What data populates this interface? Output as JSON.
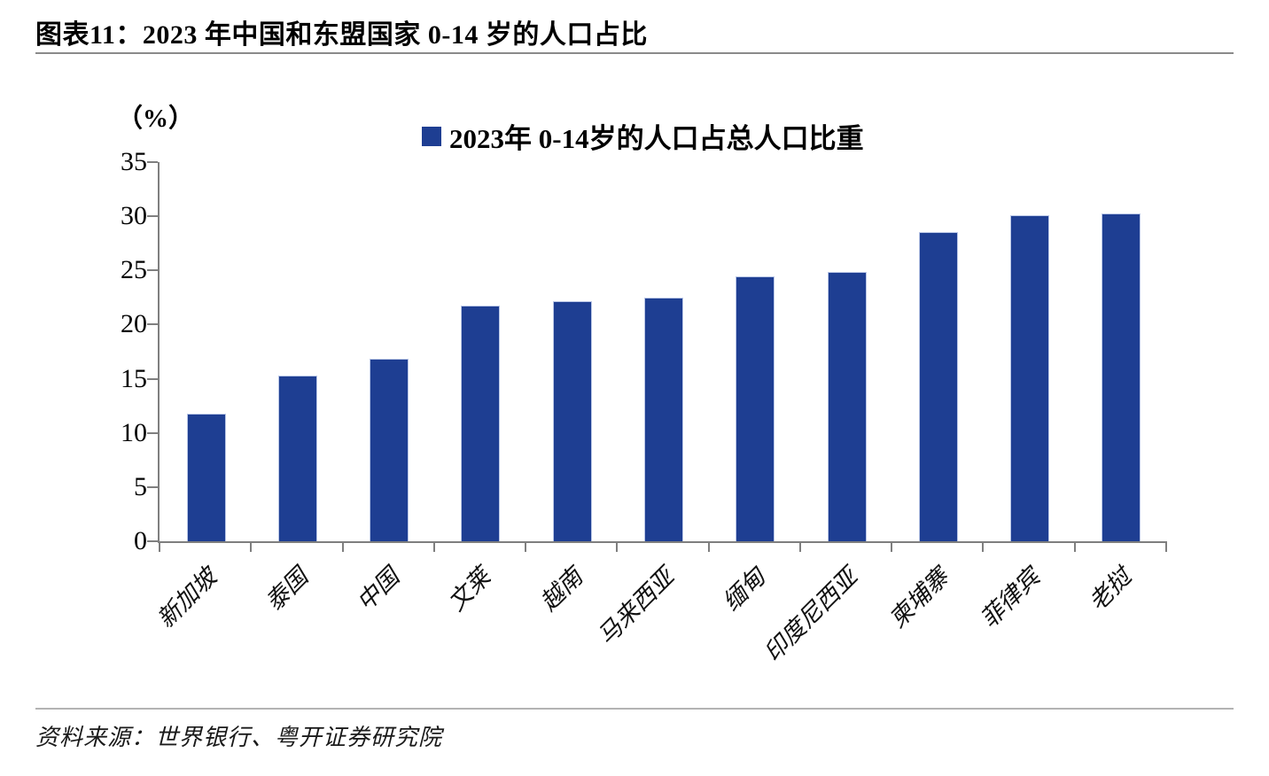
{
  "title": "图表11：2023 年中国和东盟国家 0-14 岁的人口占比",
  "footer": {
    "source_label": "资料来源：世界银行、粤开证券研究院"
  },
  "colors": {
    "bar_fill": "#1e3e92",
    "bar_edge": "#b9c6e6",
    "axis_line": "#7f7f7f",
    "title_rule": "#8a8a8a",
    "footer_rule": "#b3b3b3",
    "text": "#000000"
  },
  "chart_data": {
    "type": "bar",
    "title": "图表11：2023 年中国和东盟国家 0-14 岁的人口占比",
    "legend": "2023年 0-14岁的人口占总人口比重",
    "legend_position": "top-center",
    "unit_label": "（%）",
    "xlabel": "",
    "ylabel": "（%）",
    "categories": [
      "新加坡",
      "泰国",
      "中国",
      "文莱",
      "越南",
      "马来西亚",
      "缅甸",
      "印度尼西亚",
      "柬埔寨",
      "菲律宾",
      "老挝"
    ],
    "values": [
      11.7,
      15.2,
      16.8,
      21.7,
      22.1,
      22.4,
      24.4,
      24.8,
      28.5,
      30.0,
      30.2
    ],
    "ylim": [
      0,
      35
    ],
    "yticks": [
      0,
      5,
      10,
      15,
      20,
      25,
      30,
      35
    ],
    "grid": false
  }
}
